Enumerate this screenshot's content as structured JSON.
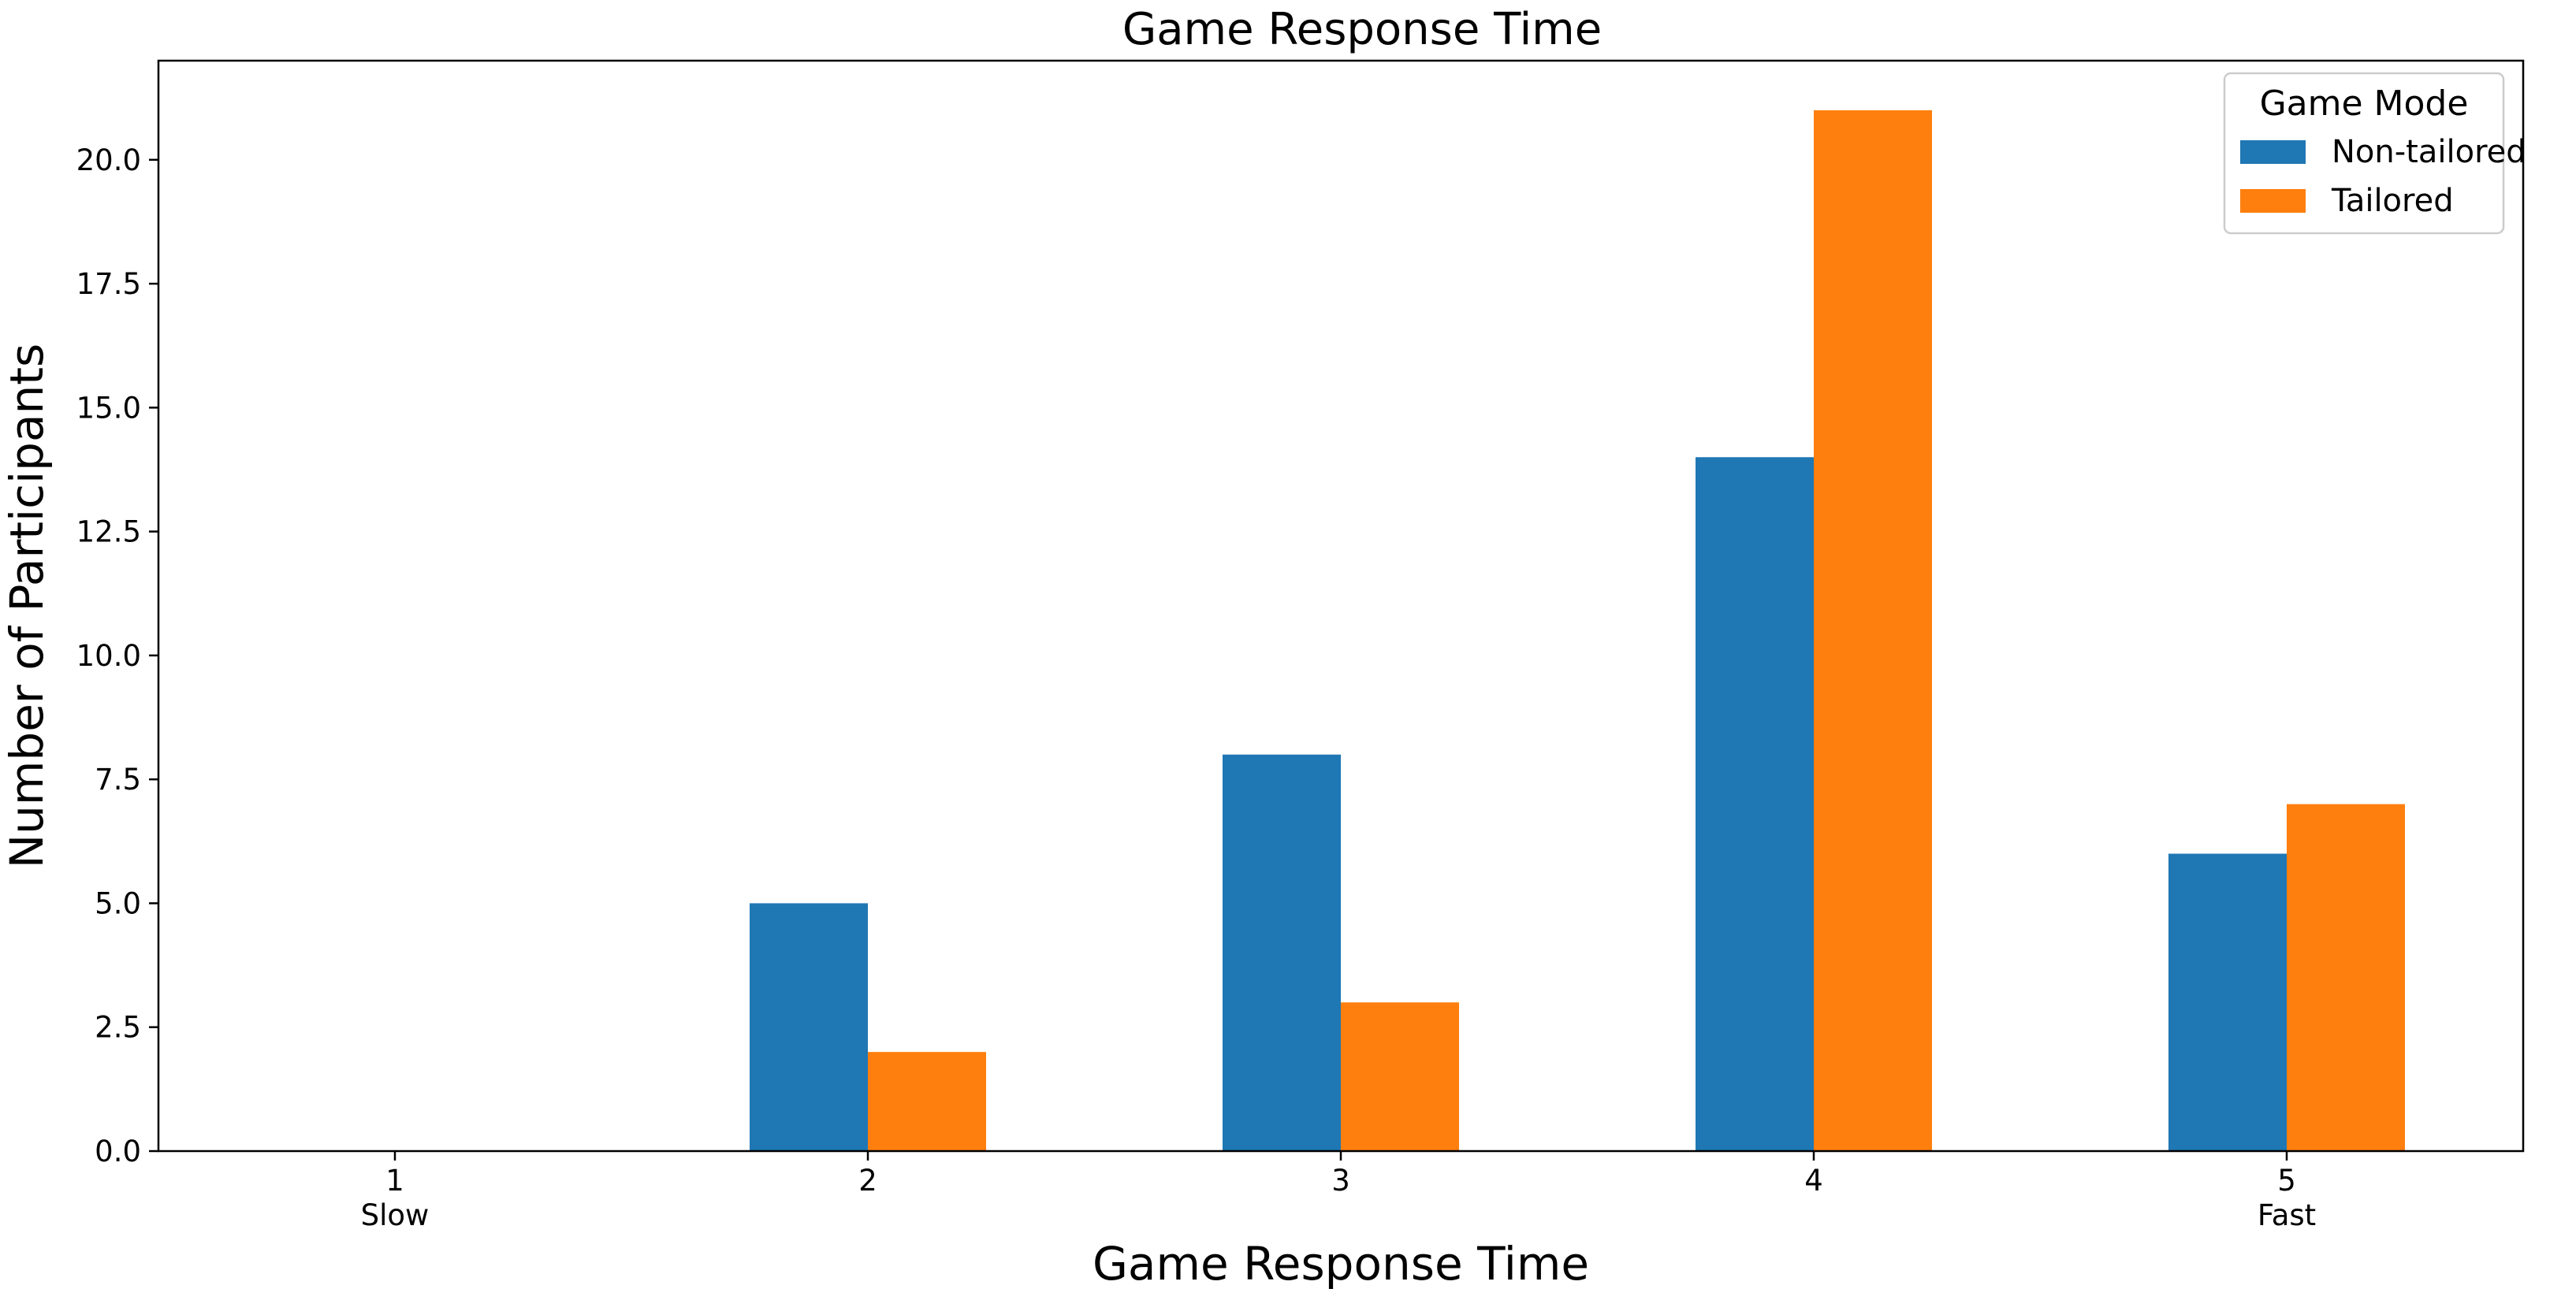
{
  "chart_data": {
    "type": "bar",
    "title": "Game Response Time",
    "xlabel": "Game Response Time",
    "ylabel": "Number of Participants",
    "categories": [
      "1",
      "2",
      "3",
      "4",
      "5"
    ],
    "category_sublabels": [
      "Slow",
      "",
      "",
      "",
      "Fast"
    ],
    "series": [
      {
        "name": "Non-tailored",
        "color": "#1f77b4",
        "values": [
          0,
          5,
          8,
          14,
          6
        ]
      },
      {
        "name": "Tailored",
        "color": "#ff7f0e",
        "values": [
          0,
          2,
          3,
          21,
          7
        ]
      }
    ],
    "ylim": [
      0,
      22
    ],
    "yticks": [
      "0.0",
      "2.5",
      "5.0",
      "7.5",
      "10.0",
      "12.5",
      "15.0",
      "17.5",
      "20.0"
    ],
    "grid": false,
    "legend": {
      "title": "Game Mode",
      "position": "top-right"
    }
  }
}
